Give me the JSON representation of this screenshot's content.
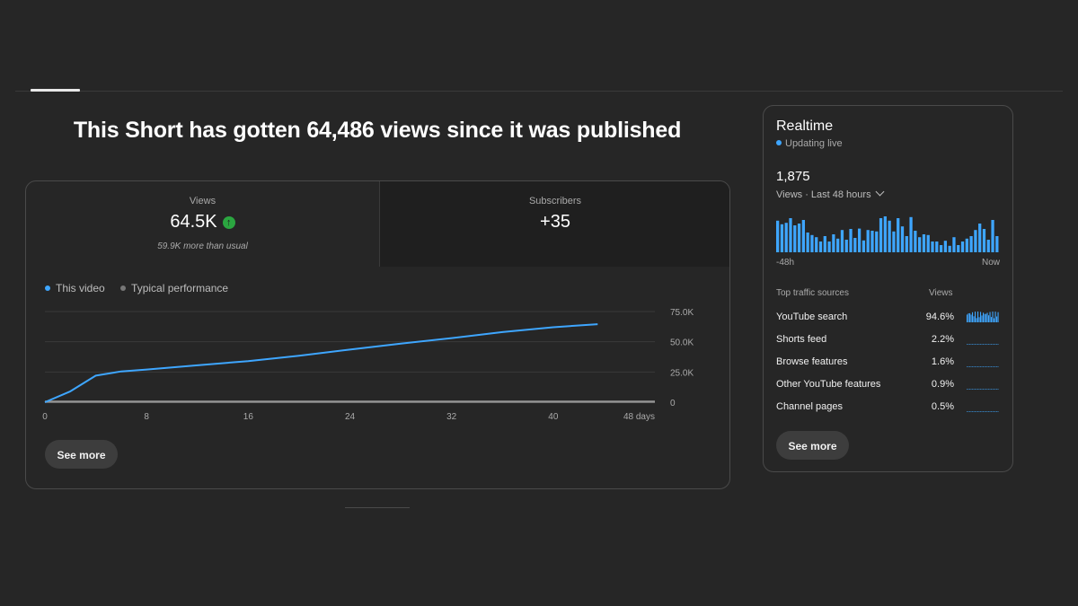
{
  "headline": "This Short has gotten 64,486 views since it was published",
  "metrics": {
    "views": {
      "label": "Views",
      "value": "64.5K",
      "sub": "59.9K more than usual",
      "trend": "up"
    },
    "subscribers": {
      "label": "Subscribers",
      "value": "+35"
    }
  },
  "colors": {
    "this_video": "#3ea6ff",
    "typical": "#9a9a9a",
    "trend_up": "#2ba640"
  },
  "chart_data": {
    "type": "line",
    "series": [
      {
        "name": "This video",
        "x": [
          0,
          2,
          4,
          6,
          8,
          12,
          16,
          20,
          24,
          28,
          32,
          36,
          40,
          43.5
        ],
        "y": [
          0,
          9000,
          22000,
          25500,
          27000,
          30500,
          34000,
          38500,
          43500,
          48500,
          53000,
          58000,
          62000,
          64500
        ]
      },
      {
        "name": "Typical performance",
        "x": [
          0,
          48
        ],
        "y": [
          0,
          0
        ]
      }
    ],
    "xticks": [
      "0",
      "8",
      "16",
      "24",
      "32",
      "40",
      "48 days"
    ],
    "xtick_values": [
      0,
      8,
      16,
      24,
      32,
      40,
      48
    ],
    "yticks": [
      "0",
      "25.0K",
      "50.0K",
      "75.0K"
    ],
    "ytick_values": [
      0,
      25000,
      50000,
      75000
    ],
    "xlim": [
      0,
      48
    ],
    "ylim": [
      0,
      75000
    ],
    "grid": true,
    "legend_position": "top-left"
  },
  "see_more": "See more",
  "realtime": {
    "title": "Realtime",
    "status": "Updating live",
    "count": "1,875",
    "period": "Views · Last 48 hours",
    "bars": [
      0.88,
      0.78,
      0.82,
      0.95,
      0.75,
      0.8,
      0.9,
      0.55,
      0.48,
      0.42,
      0.3,
      0.45,
      0.3,
      0.5,
      0.38,
      0.62,
      0.35,
      0.65,
      0.4,
      0.66,
      0.33,
      0.62,
      0.6,
      0.58,
      0.95,
      1.0,
      0.88,
      0.58,
      0.95,
      0.72,
      0.45,
      0.98,
      0.6,
      0.42,
      0.5,
      0.48,
      0.3,
      0.3,
      0.2,
      0.32,
      0.18,
      0.42,
      0.2,
      0.3,
      0.38,
      0.45,
      0.62,
      0.8,
      0.65,
      0.35,
      0.9,
      0.45
    ],
    "axis_start": "-48h",
    "axis_end": "Now",
    "traffic_header": "Top traffic sources",
    "traffic_views_header": "Views",
    "traffic": [
      {
        "name": "YouTube search",
        "pct": "94.6%",
        "share": 0.946
      },
      {
        "name": "Shorts feed",
        "pct": "2.2%",
        "share": 0.022
      },
      {
        "name": "Browse features",
        "pct": "1.6%",
        "share": 0.016
      },
      {
        "name": "Other YouTube features",
        "pct": "0.9%",
        "share": 0.009
      },
      {
        "name": "Channel pages",
        "pct": "0.5%",
        "share": 0.005
      }
    ]
  }
}
